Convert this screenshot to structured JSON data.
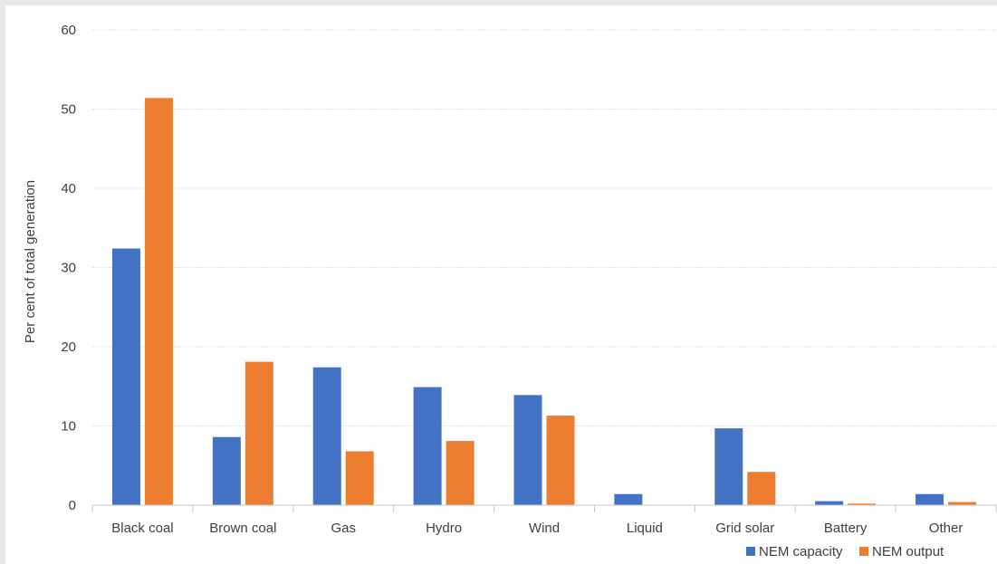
{
  "chart_data": {
    "type": "bar",
    "title": "",
    "xlabel": "",
    "ylabel": "Per cent of total generation",
    "ylim": [
      0,
      60
    ],
    "yticks": [
      0,
      10,
      20,
      30,
      40,
      50,
      60
    ],
    "grid": true,
    "legend_position": "bottom-right",
    "categories": [
      "Black coal",
      "Brown coal",
      "Gas",
      "Hydro",
      "Wind",
      "Liquid",
      "Grid solar",
      "Battery",
      "Other"
    ],
    "series": [
      {
        "name": "NEM capacity",
        "color": "#4472c4",
        "values": [
          32.4,
          8.6,
          17.4,
          14.9,
          13.9,
          1.4,
          9.7,
          0.5,
          1.4
        ]
      },
      {
        "name": "NEM output",
        "color": "#ed7d31",
        "values": [
          51.4,
          18.1,
          6.8,
          8.1,
          11.3,
          0.0,
          4.2,
          0.2,
          0.4
        ]
      }
    ]
  }
}
